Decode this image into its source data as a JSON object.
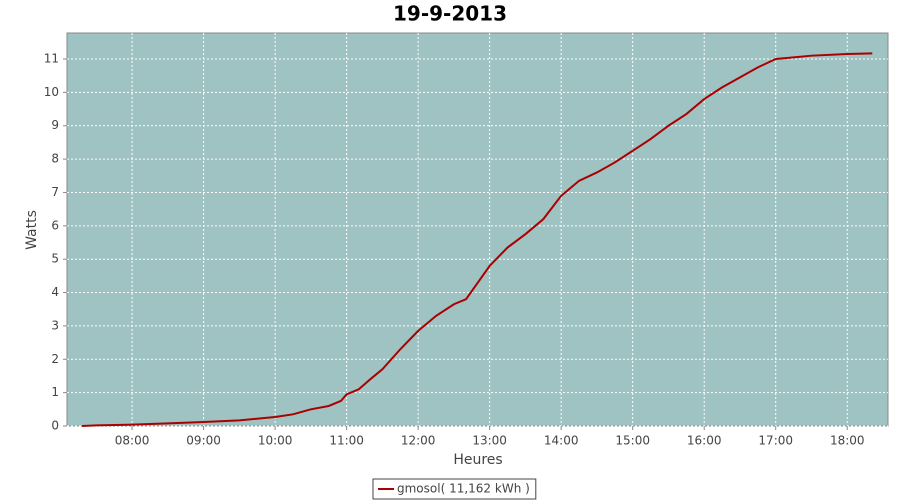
{
  "chart_data": {
    "type": "line",
    "title": "19-9-2013",
    "x_label": "Heures",
    "y_label": "Watts",
    "x": [
      7.3,
      7.5,
      8.0,
      8.5,
      9.0,
      9.5,
      10.0,
      10.25,
      10.5,
      10.75,
      10.92,
      11.0,
      11.17,
      11.33,
      11.5,
      11.75,
      12.0,
      12.25,
      12.5,
      12.67,
      13.0,
      13.25,
      13.5,
      13.75,
      14.0,
      14.25,
      14.5,
      14.75,
      15.0,
      15.25,
      15.5,
      15.75,
      16.0,
      16.25,
      16.5,
      16.75,
      17.0,
      17.25,
      17.5,
      18.0,
      18.35
    ],
    "series": [
      {
        "name": "gmosol( 11,162 kWh )",
        "color": "#aa0000",
        "values": [
          0,
          0.02,
          0.04,
          0.08,
          0.12,
          0.17,
          0.27,
          0.35,
          0.5,
          0.6,
          0.75,
          0.95,
          1.1,
          1.4,
          1.7,
          2.3,
          2.85,
          3.3,
          3.65,
          3.8,
          4.8,
          5.35,
          5.75,
          6.2,
          6.9,
          7.35,
          7.6,
          7.9,
          8.25,
          8.6,
          9.0,
          9.35,
          9.8,
          10.15,
          10.45,
          10.75,
          11.0,
          11.05,
          11.1,
          11.15,
          11.17
        ]
      }
    ],
    "xlim": [
      7.09,
      18.57
    ],
    "ylim": [
      0,
      11.78
    ],
    "xticks": [
      {
        "value": 8,
        "label": "08:00"
      },
      {
        "value": 9,
        "label": "09:00"
      },
      {
        "value": 10,
        "label": "10:00"
      },
      {
        "value": 11,
        "label": "11:00"
      },
      {
        "value": 12,
        "label": "12:00"
      },
      {
        "value": 13,
        "label": "13:00"
      },
      {
        "value": 14,
        "label": "14:00"
      },
      {
        "value": 15,
        "label": "15:00"
      },
      {
        "value": 16,
        "label": "16:00"
      },
      {
        "value": 17,
        "label": "17:00"
      },
      {
        "value": 18,
        "label": "18:00"
      }
    ],
    "yticks": [
      0,
      1,
      2,
      3,
      4,
      5,
      6,
      7,
      8,
      9,
      10,
      11
    ],
    "grid": true,
    "background": "#9fc2c2",
    "legend": "bottom"
  }
}
